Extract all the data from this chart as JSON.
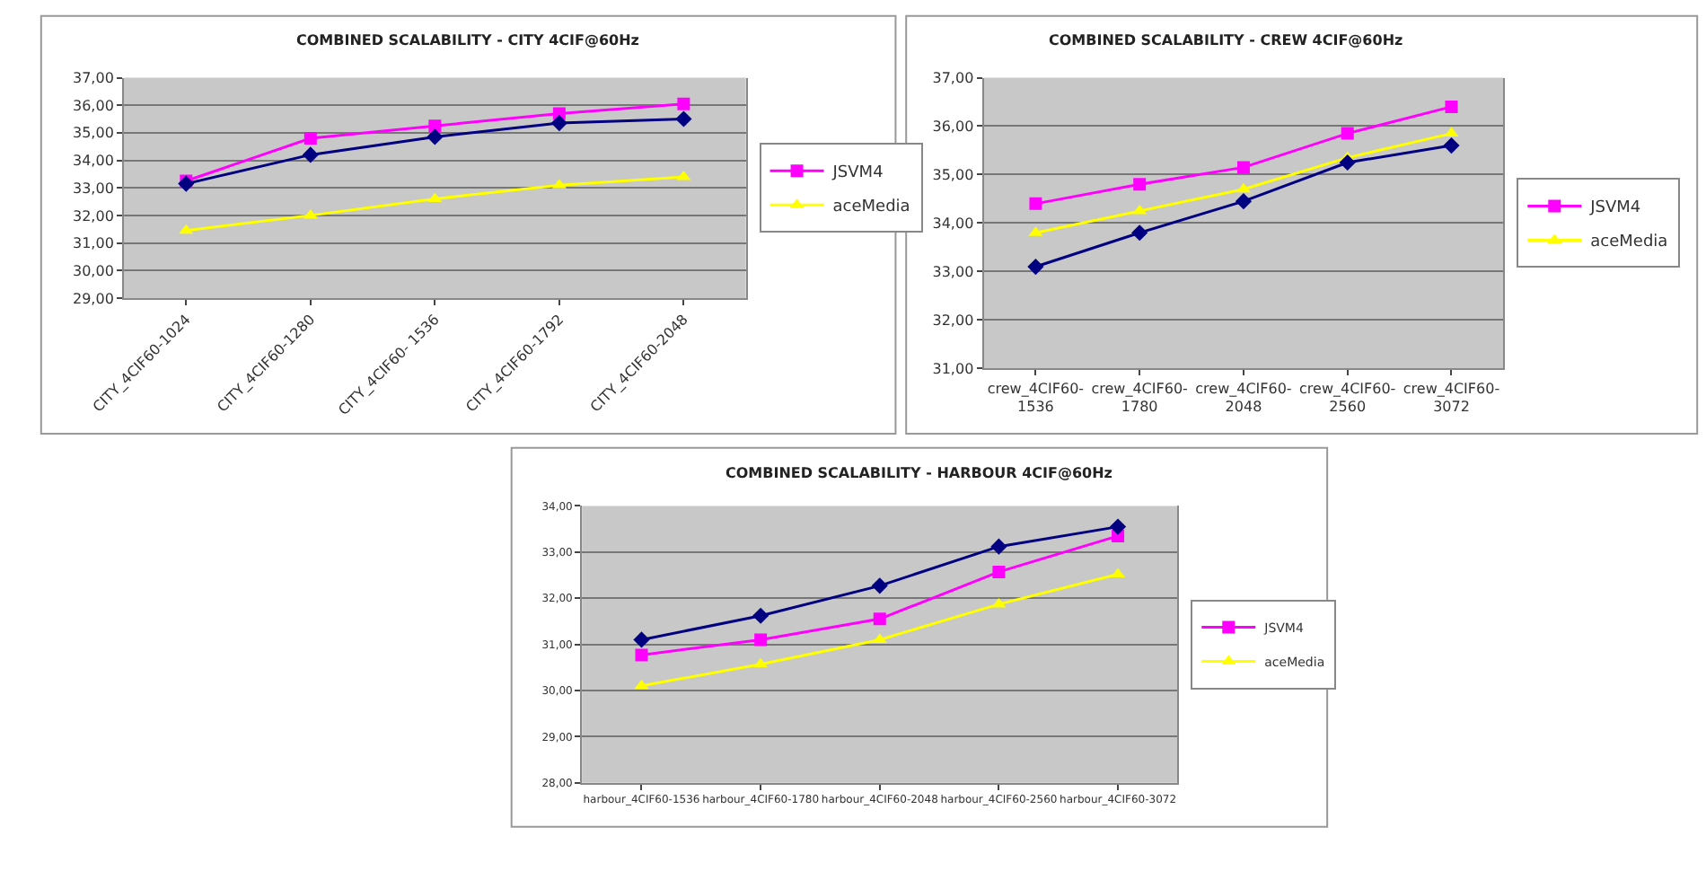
{
  "chart_data": [
    {
      "type": "line",
      "title": "COMBINED SCALABILITY - CITY 4CIF@60Hz",
      "categories": [
        "CITY_4CIF60-1024",
        "CITY_4CIF60-1280",
        "CITY_4CIF60- 1536",
        "CITY_4CIF60-1792",
        "CITY_4CIF60-2048"
      ],
      "series": [
        {
          "color": "#000080",
          "marker": "diamond",
          "values": [
            33.15,
            34.2,
            34.85,
            35.35,
            35.5
          ]
        },
        {
          "name": "JSVM4",
          "color": "#ff00ff",
          "marker": "square",
          "values": [
            33.25,
            34.8,
            35.25,
            35.7,
            36.05
          ]
        },
        {
          "name": "aceMedia",
          "color": "#ffff00",
          "marker": "triangle",
          "values": [
            31.45,
            32.0,
            32.6,
            33.1,
            33.4
          ]
        }
      ],
      "ylim": [
        29,
        37
      ],
      "yticks": [
        {
          "value": 29,
          "label": "29,00"
        },
        {
          "value": 30,
          "label": "30,00"
        },
        {
          "value": 31,
          "label": "31,00"
        },
        {
          "value": 32,
          "label": "32,00"
        },
        {
          "value": 33,
          "label": "33,00"
        },
        {
          "value": 34,
          "label": "34,00"
        },
        {
          "value": 35,
          "label": "35,00"
        },
        {
          "value": 36,
          "label": "36,00"
        },
        {
          "value": 37,
          "label": "37,00"
        }
      ],
      "grid": "y",
      "legend": "right"
    },
    {
      "type": "line",
      "title": "COMBINED SCALABILITY - CREW 4CIF@60Hz",
      "categories": [
        "crew_4CIF60-1536",
        "crew_4CIF60-1780",
        "crew_4CIF60-2048",
        "crew_4CIF60-2560",
        "crew_4CIF60-3072"
      ],
      "series": [
        {
          "color": "#000080",
          "marker": "diamond",
          "values": [
            33.1,
            33.8,
            34.45,
            35.25,
            35.6
          ]
        },
        {
          "name": "JSVM4",
          "color": "#ff00ff",
          "marker": "square",
          "values": [
            34.4,
            34.8,
            35.15,
            35.85,
            36.4
          ]
        },
        {
          "name": "aceMedia",
          "color": "#ffff00",
          "marker": "triangle",
          "values": [
            33.8,
            34.25,
            34.7,
            35.35,
            35.85
          ]
        }
      ],
      "ylim": [
        31,
        37
      ],
      "yticks": [
        {
          "value": 31,
          "label": "31,00"
        },
        {
          "value": 32,
          "label": "32,00"
        },
        {
          "value": 33,
          "label": "33,00"
        },
        {
          "value": 34,
          "label": "34,00"
        },
        {
          "value": 35,
          "label": "35,00"
        },
        {
          "value": 36,
          "label": "36,00"
        },
        {
          "value": 37,
          "label": "37,00"
        }
      ],
      "grid": "y",
      "legend": "right"
    },
    {
      "type": "line",
      "title": "COMBINED SCALABILITY - HARBOUR 4CIF@60Hz",
      "categories": [
        "harbour_4CIF60-1536",
        "harbour_4CIF60-1780",
        "harbour_4CIF60-2048",
        "harbour_4CIF60-2560",
        "harbour_4CIF60-3072"
      ],
      "series": [
        {
          "color": "#000080",
          "marker": "diamond",
          "values": [
            31.1,
            31.62,
            32.27,
            33.12,
            33.55
          ]
        },
        {
          "name": "JSVM4",
          "color": "#ff00ff",
          "marker": "square",
          "values": [
            30.77,
            31.1,
            31.55,
            32.57,
            33.35
          ]
        },
        {
          "name": "aceMedia",
          "color": "#ffff00",
          "marker": "triangle",
          "values": [
            30.1,
            30.57,
            31.1,
            31.87,
            32.52
          ]
        }
      ],
      "ylim": [
        28,
        34
      ],
      "yticks": [
        {
          "value": 28,
          "label": "28,00"
        },
        {
          "value": 29,
          "label": "29,00"
        },
        {
          "value": 30,
          "label": "30,00"
        },
        {
          "value": 31,
          "label": "31,00"
        },
        {
          "value": 32,
          "label": "32,00"
        },
        {
          "value": 33,
          "label": "33,00"
        },
        {
          "value": 34,
          "label": "34,00"
        }
      ],
      "grid": "y",
      "legend": "right"
    }
  ]
}
